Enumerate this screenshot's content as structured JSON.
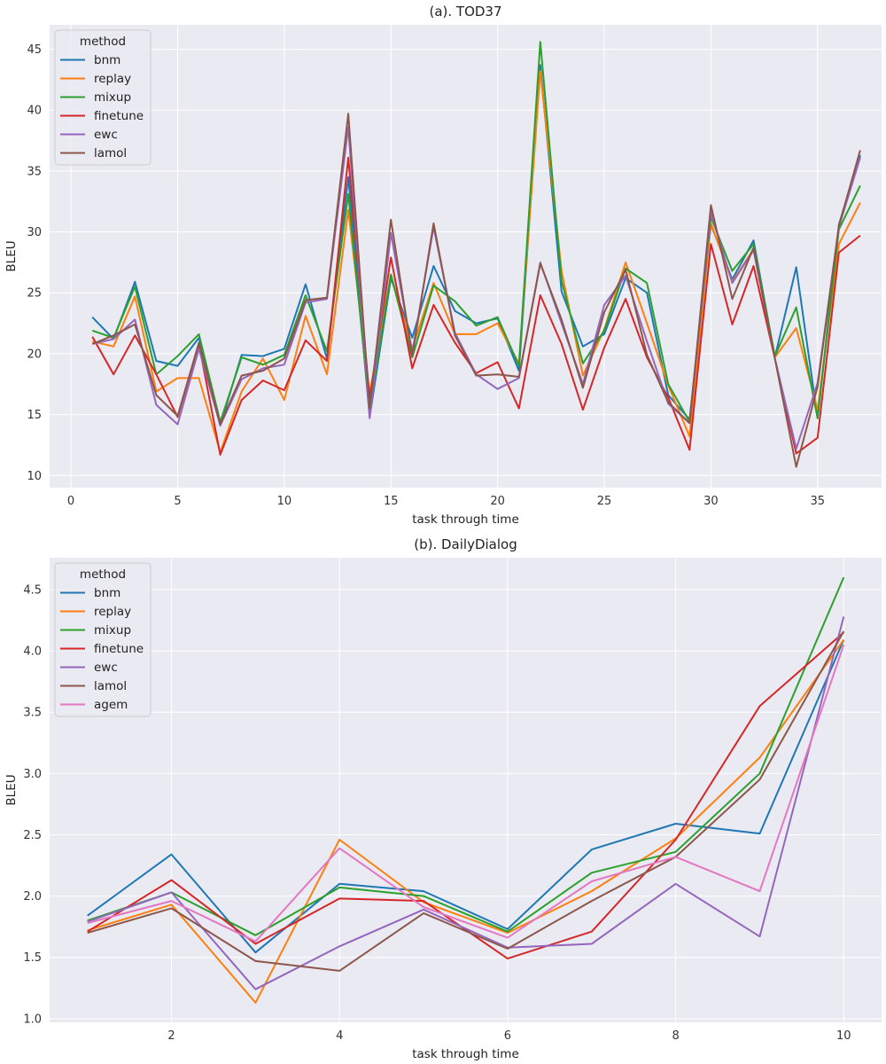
{
  "colors": {
    "bnm": "#1f77b4",
    "replay": "#ff7f0e",
    "mixup": "#2ca02c",
    "finetune": "#d62728",
    "ewc": "#9467bd",
    "lamol": "#8c564b",
    "agem": "#e377c2"
  },
  "chart_data": [
    {
      "type": "line",
      "title": "(a). TOD37",
      "xlabel": "task through time",
      "ylabel": "BLEU",
      "legend_title": "method",
      "legend_position": "top-left",
      "xlim": [
        -1,
        38
      ],
      "ylim": [
        9,
        47
      ],
      "xticks": [
        0,
        5,
        10,
        15,
        20,
        25,
        30,
        35
      ],
      "yticks": [
        10,
        15,
        20,
        25,
        30,
        35,
        40,
        45
      ],
      "x": [
        1,
        2,
        3,
        4,
        5,
        6,
        7,
        8,
        9,
        10,
        11,
        12,
        13,
        14,
        15,
        16,
        17,
        18,
        19,
        20,
        21,
        22,
        23,
        24,
        25,
        26,
        27,
        28,
        29,
        30,
        31,
        32,
        33,
        34,
        35,
        36,
        37
      ],
      "series": [
        {
          "name": "bnm",
          "values": [
            23.0,
            21.2,
            25.9,
            19.4,
            19.0,
            21.3,
            14.1,
            19.9,
            19.8,
            20.4,
            25.7,
            19.6,
            34.5,
            14.8,
            26.2,
            21.3,
            27.2,
            23.5,
            22.5,
            22.9,
            18.6,
            43.7,
            25.1,
            20.6,
            21.6,
            26.2,
            25.0,
            16.6,
            14.6,
            30.6,
            26.1,
            29.3,
            19.7,
            27.1,
            14.7,
            30.6,
            36.3
          ]
        },
        {
          "name": "replay",
          "values": [
            21.0,
            20.6,
            24.7,
            16.9,
            18.0,
            18.0,
            11.9,
            16.9,
            19.6,
            16.2,
            23.1,
            18.3,
            31.8,
            16.7,
            26.5,
            20.4,
            25.8,
            21.6,
            21.6,
            22.5,
            19.2,
            43.2,
            26.8,
            18.2,
            22.0,
            27.5,
            22.5,
            17.4,
            13.2,
            30.7,
            25.9,
            28.6,
            19.7,
            22.1,
            15.4,
            29.0,
            32.4
          ]
        },
        {
          "name": "mixup",
          "values": [
            21.9,
            21.3,
            25.5,
            18.3,
            19.8,
            21.6,
            14.4,
            19.7,
            19.1,
            19.9,
            24.8,
            20.2,
            33.1,
            15.3,
            26.5,
            19.7,
            25.6,
            24.3,
            22.3,
            23.0,
            19.0,
            45.6,
            26.0,
            19.2,
            21.9,
            27.0,
            25.8,
            17.5,
            14.4,
            31.2,
            26.8,
            29.0,
            19.8,
            23.8,
            14.7,
            30.2,
            33.8
          ]
        },
        {
          "name": "finetune",
          "values": [
            21.4,
            18.3,
            21.5,
            18.3,
            14.8,
            20.8,
            11.7,
            16.2,
            17.8,
            17.0,
            21.1,
            19.4,
            36.1,
            16.3,
            27.9,
            18.8,
            24.0,
            20.9,
            18.4,
            19.3,
            15.5,
            24.8,
            20.8,
            15.4,
            20.5,
            24.5,
            19.7,
            16.4,
            12.1,
            29.0,
            22.4,
            27.2,
            19.6,
            11.8,
            13.1,
            28.3,
            29.7
          ]
        },
        {
          "name": "ewc",
          "values": [
            20.8,
            21.2,
            22.8,
            15.8,
            14.2,
            20.4,
            14.1,
            17.9,
            18.8,
            19.1,
            24.2,
            24.5,
            38.6,
            14.7,
            29.9,
            20.1,
            30.4,
            21.7,
            18.3,
            17.1,
            18.0,
            27.5,
            22.5,
            17.5,
            24.0,
            26.4,
            21.0,
            15.9,
            14.3,
            31.6,
            25.8,
            28.5,
            19.6,
            12.2,
            17.6,
            30.4,
            36.1
          ]
        },
        {
          "name": "lamol",
          "values": [
            20.8,
            21.5,
            22.4,
            16.6,
            14.9,
            20.9,
            14.2,
            18.2,
            18.6,
            19.6,
            24.4,
            24.6,
            39.7,
            15.5,
            31.0,
            19.8,
            30.7,
            21.5,
            18.2,
            18.3,
            18.1,
            27.4,
            22.8,
            17.2,
            23.4,
            26.9,
            19.9,
            16.0,
            14.3,
            32.2,
            24.5,
            28.7,
            19.6,
            10.7,
            17.3,
            30.5,
            36.7
          ]
        }
      ]
    },
    {
      "type": "line",
      "title": "(b). DailyDialog",
      "xlabel": "task through time",
      "ylabel": "BLEU",
      "legend_title": "method",
      "legend_position": "top-left",
      "xlim": [
        0.55,
        10.45
      ],
      "ylim": [
        0.97,
        4.76
      ],
      "xticks": [
        2,
        4,
        6,
        8,
        10
      ],
      "yticks": [
        1.0,
        1.5,
        2.0,
        2.5,
        3.0,
        3.5,
        4.0,
        4.5
      ],
      "x": [
        1,
        2,
        3,
        4,
        5,
        6,
        7,
        8,
        9,
        10
      ],
      "series": [
        {
          "name": "bnm",
          "values": [
            1.84,
            2.34,
            1.54,
            2.1,
            2.04,
            1.73,
            2.38,
            2.59,
            2.51,
            4.09
          ]
        },
        {
          "name": "replay",
          "values": [
            1.72,
            1.93,
            1.13,
            2.46,
            1.95,
            1.7,
            2.04,
            2.47,
            3.13,
            4.09
          ]
        },
        {
          "name": "mixup",
          "values": [
            1.8,
            2.03,
            1.68,
            2.07,
            2.0,
            1.71,
            2.19,
            2.36,
            3.0,
            4.6
          ]
        },
        {
          "name": "finetune",
          "values": [
            1.71,
            2.13,
            1.61,
            1.98,
            1.96,
            1.49,
            1.71,
            2.46,
            3.55,
            4.15
          ]
        },
        {
          "name": "ewc",
          "values": [
            1.79,
            2.03,
            1.24,
            1.59,
            1.89,
            1.58,
            1.61,
            2.1,
            1.67,
            4.28
          ]
        },
        {
          "name": "lamol",
          "values": [
            1.7,
            1.9,
            1.47,
            1.39,
            1.86,
            1.57,
            1.96,
            2.32,
            2.95,
            4.16
          ]
        },
        {
          "name": "agem",
          "values": [
            1.78,
            1.96,
            1.63,
            2.39,
            1.91,
            1.66,
            2.12,
            2.32,
            2.04,
            4.05
          ]
        }
      ]
    }
  ]
}
